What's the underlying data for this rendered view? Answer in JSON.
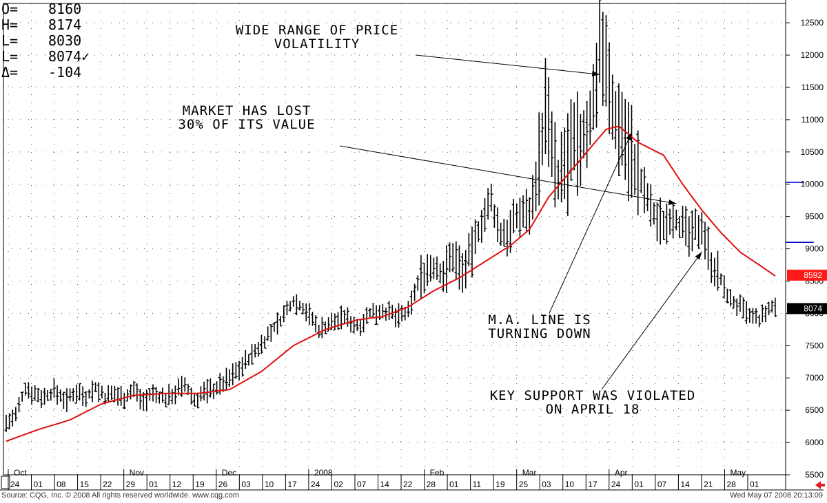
{
  "ohlc_readout": [
    {
      "key": "O=",
      "value": "8160"
    },
    {
      "key": "H=",
      "value": "8174"
    },
    {
      "key": "L=",
      "value": "8030"
    },
    {
      "key": "L=",
      "value": "8074✓"
    },
    {
      "key": "Δ=",
      "value": "-104"
    }
  ],
  "badges": [
    {
      "label": "8592",
      "value": 8592,
      "color": "#ff1a1a",
      "text_color": "#ffffff"
    },
    {
      "label": "8074",
      "value": 8074,
      "color": "#000000",
      "text_color": "#ffffff"
    }
  ],
  "footer": {
    "source": "Source: CQG, Inc. © 2008 All rights reserved worldwide. www.cqg.com",
    "timestamp": "Wed May 07 2008 20:13:09"
  },
  "chart_data": {
    "type": "ohlc",
    "ylim": [
      5500,
      12800
    ],
    "yticks": [
      5500,
      6000,
      6500,
      7000,
      7500,
      8000,
      8500,
      9000,
      9500,
      10000,
      10500,
      11000,
      11500,
      12000,
      12500
    ],
    "grid": true,
    "x_day_labels": [
      "24",
      "01",
      "08",
      "15",
      "22",
      "29",
      "01",
      "12",
      "19",
      "26",
      "03",
      "10",
      "17",
      "24",
      "02",
      "07",
      "14",
      "22",
      "28",
      "01",
      "11",
      "19",
      "25",
      "03",
      "10",
      "17",
      "24",
      "01",
      "07",
      "14",
      "21",
      "28",
      "01"
    ],
    "month_labels": [
      {
        "label": "Oct",
        "after_tick": 1
      },
      {
        "label": "Nov",
        "after_tick": 6
      },
      {
        "label": "Dec",
        "after_tick": 10
      },
      {
        "label": "2008",
        "after_tick": 14
      },
      {
        "label": "Feb",
        "after_tick": 19
      },
      {
        "label": "Mar",
        "after_tick": 23
      },
      {
        "label": "Apr",
        "after_tick": 27
      },
      {
        "label": "May",
        "after_tick": 32
      }
    ],
    "price_path": [
      [
        0,
        6300
      ],
      [
        3,
        6400
      ],
      [
        6,
        6850
      ],
      [
        9,
        6750
      ],
      [
        12,
        6700
      ],
      [
        15,
        6800
      ],
      [
        19,
        6650
      ],
      [
        22,
        6800
      ],
      [
        25,
        6720
      ],
      [
        28,
        6850
      ],
      [
        31,
        6700
      ],
      [
        34,
        6750
      ],
      [
        37,
        6700
      ],
      [
        40,
        6820
      ],
      [
        43,
        6650
      ],
      [
        46,
        6750
      ],
      [
        50,
        6680
      ],
      [
        53,
        6780
      ],
      [
        56,
        6880
      ],
      [
        59,
        6650
      ],
      [
        62,
        6780
      ],
      [
        66,
        6850
      ],
      [
        70,
        7000
      ],
      [
        74,
        7200
      ],
      [
        78,
        7400
      ],
      [
        82,
        7650
      ],
      [
        86,
        7900
      ],
      [
        90,
        8200
      ],
      [
        94,
        8050
      ],
      [
        98,
        7750
      ],
      [
        102,
        7850
      ],
      [
        106,
        7950
      ],
      [
        110,
        7800
      ],
      [
        114,
        8000
      ],
      [
        118,
        8050
      ],
      [
        122,
        7950
      ],
      [
        126,
        8000
      ],
      [
        128,
        8350
      ],
      [
        131,
        8650
      ],
      [
        134,
        8700
      ],
      [
        137,
        8600
      ],
      [
        140,
        8900
      ],
      [
        143,
        8650
      ],
      [
        146,
        8950
      ],
      [
        149,
        9450
      ],
      [
        152,
        9700
      ],
      [
        155,
        9200
      ],
      [
        158,
        9300
      ],
      [
        161,
        9550
      ],
      [
        164,
        9600
      ],
      [
        167,
        10300
      ],
      [
        169,
        11200
      ],
      [
        171,
        10500
      ],
      [
        173,
        10000
      ],
      [
        175,
        10300
      ],
      [
        178,
        10500
      ],
      [
        181,
        10700
      ],
      [
        184,
        11200
      ],
      [
        186,
        12300
      ],
      [
        188,
        11900
      ],
      [
        190,
        11100
      ],
      [
        193,
        10900
      ],
      [
        195,
        10600
      ],
      [
        198,
        10100
      ],
      [
        200,
        9900
      ],
      [
        203,
        9500
      ],
      [
        206,
        9400
      ],
      [
        209,
        9550
      ],
      [
        212,
        9300
      ],
      [
        215,
        9200
      ],
      [
        218,
        9400
      ],
      [
        221,
        8800
      ],
      [
        224,
        8500
      ],
      [
        227,
        8200
      ],
      [
        230,
        8100
      ],
      [
        233,
        7950
      ],
      [
        236,
        7900
      ],
      [
        239,
        8050
      ],
      [
        241,
        8100
      ]
    ],
    "ma_path": [
      [
        0,
        6020
      ],
      [
        10,
        6200
      ],
      [
        20,
        6350
      ],
      [
        30,
        6600
      ],
      [
        40,
        6730
      ],
      [
        50,
        6760
      ],
      [
        60,
        6760
      ],
      [
        70,
        6820
      ],
      [
        80,
        7100
      ],
      [
        90,
        7500
      ],
      [
        100,
        7750
      ],
      [
        110,
        7900
      ],
      [
        118,
        7950
      ],
      [
        126,
        8100
      ],
      [
        134,
        8350
      ],
      [
        142,
        8550
      ],
      [
        150,
        8800
      ],
      [
        158,
        9050
      ],
      [
        164,
        9300
      ],
      [
        170,
        9800
      ],
      [
        176,
        10150
      ],
      [
        182,
        10500
      ],
      [
        188,
        10850
      ],
      [
        192,
        10900
      ],
      [
        198,
        10650
      ],
      [
        206,
        10450
      ],
      [
        212,
        10000
      ],
      [
        218,
        9600
      ],
      [
        224,
        9250
      ],
      [
        230,
        8950
      ],
      [
        236,
        8750
      ],
      [
        241,
        8580
      ]
    ],
    "support_lines": [
      {
        "value": 10030,
        "x_start": 168,
        "color": "#0000cc"
      },
      {
        "value": 9100,
        "x_start": 171,
        "color": "#0000cc"
      }
    ],
    "moving_average_color": "#e01010",
    "annotations": [
      {
        "lines": [
          "WIDE RANGE OF PRICE",
          "VOLATILITY"
        ],
        "arrow_to": [
          186,
          11700
        ]
      },
      {
        "lines": [
          "MARKET HAS LOST",
          "30% OF ITS VALUE"
        ],
        "arrow_to": [
          210,
          9700
        ]
      },
      {
        "lines": [
          "M.A. LINE IS",
          "TURNING DOWN"
        ],
        "arrow_to": [
          196,
          10800
        ]
      },
      {
        "lines": [
          "KEY SUPPORT WAS VIOLATED",
          "ON APRIL 18"
        ],
        "arrow_to": [
          218,
          8950
        ]
      }
    ]
  }
}
